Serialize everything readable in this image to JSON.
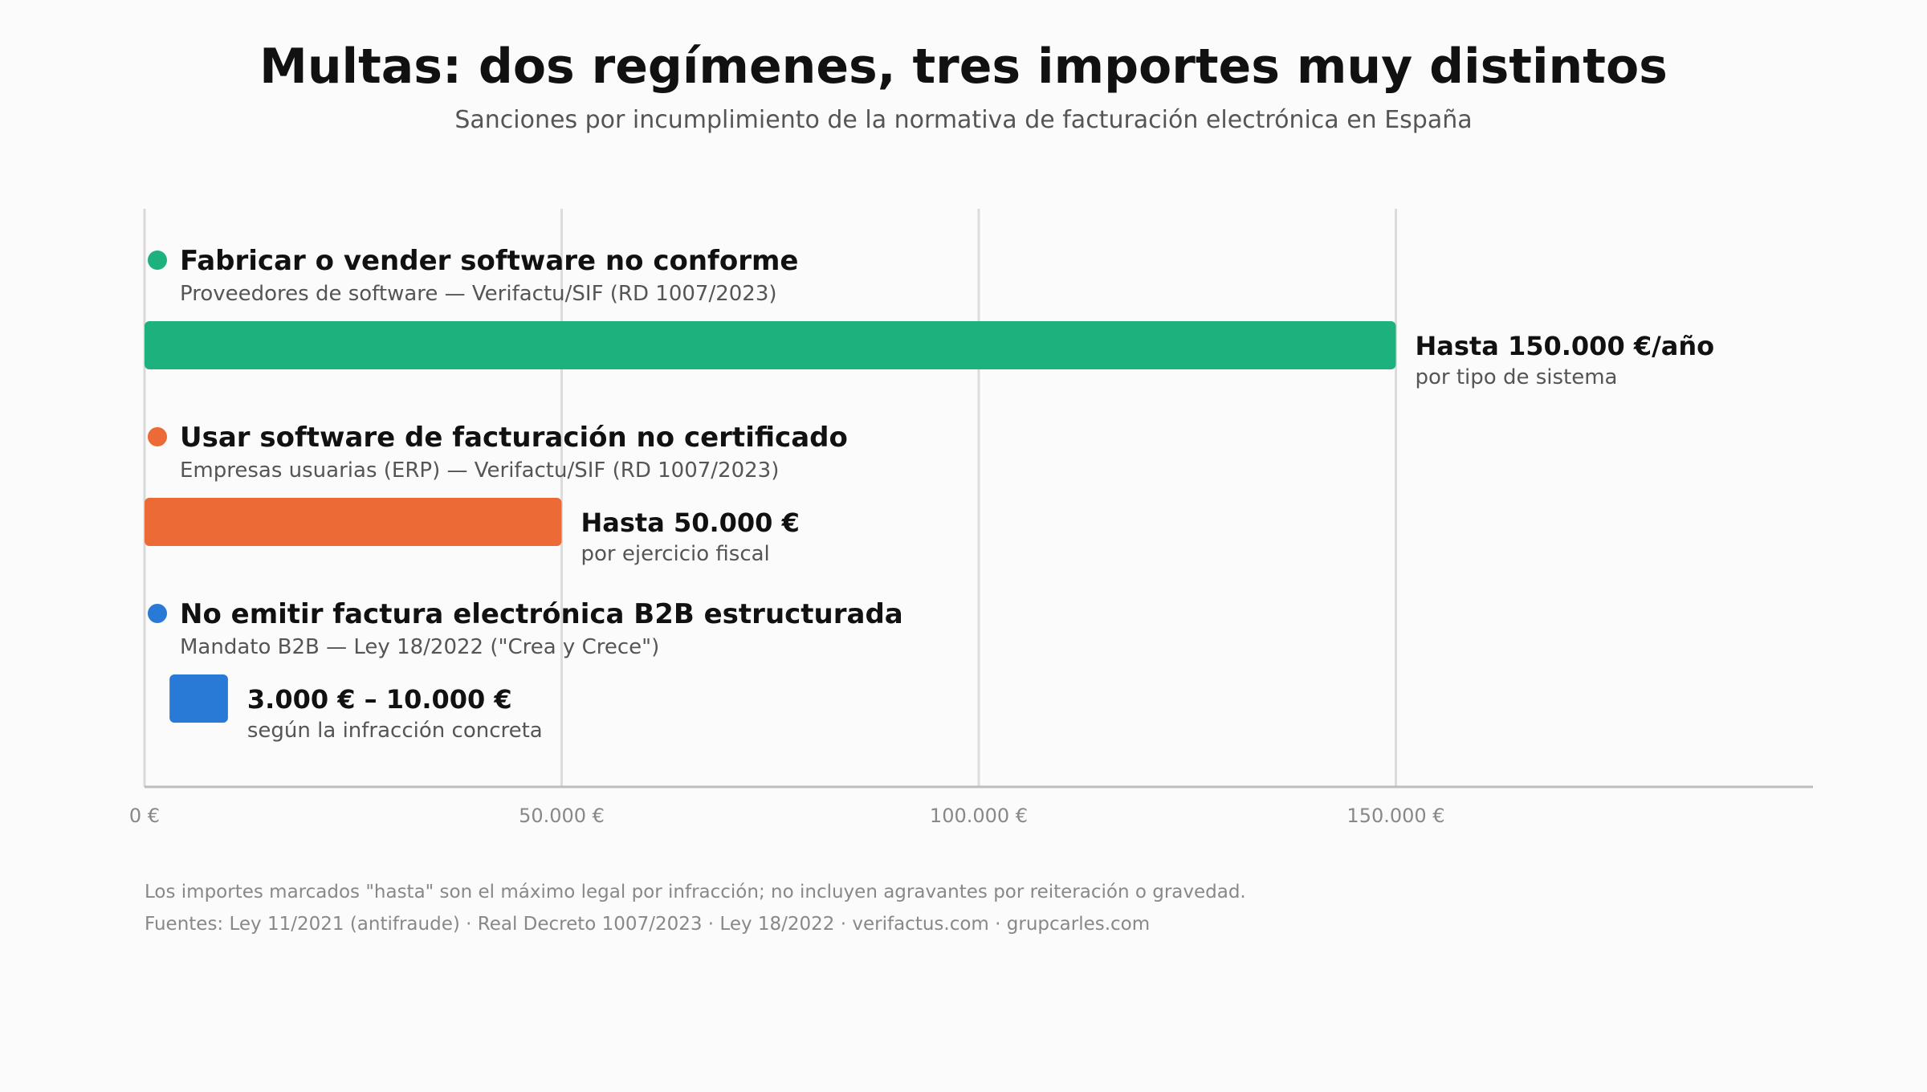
{
  "title": "Multas: dos regímenes, tres importes muy distintos",
  "subtitle": "Sanciones por incumplimiento de la normativa de facturación electrónica en España",
  "chart_data": {
    "type": "bar",
    "orientation": "horizontal",
    "xlim": [
      0,
      200000
    ],
    "xticks": [
      0,
      50000,
      100000,
      150000
    ],
    "xtick_labels": [
      "0 €",
      "50.000 €",
      "100.000 €",
      "150.000 €"
    ],
    "grid": true,
    "series": [
      {
        "name": "Fabricar o vender software no conforme",
        "subtitle": "Proveedores de software — Verifactu/SIF (RD 1007/2023)",
        "start": 0,
        "end": 150000,
        "value_label": "Hasta 150.000 €/año",
        "value_sublabel": "por tipo de sistema",
        "color": "#1db17d"
      },
      {
        "name": "Usar software de facturación no certificado",
        "subtitle": "Empresas usuarias (ERP) — Verifactu/SIF (RD 1007/2023)",
        "start": 0,
        "end": 50000,
        "value_label": "Hasta 50.000 €",
        "value_sublabel": "por ejercicio fiscal",
        "color": "#ec6a36"
      },
      {
        "name": "No emitir factura electrónica B2B estructurada",
        "subtitle": "Mandato B2B — Ley 18/2022 (\"Crea y Crece\")",
        "start": 3000,
        "end": 10000,
        "value_label": "3.000 € – 10.000 €",
        "value_sublabel": "según la infracción concreta",
        "color": "#2979d6"
      }
    ]
  },
  "footnote": "Los importes marcados \"hasta\" son el máximo legal por infracción; no incluyen agravantes por reiteración o gravedad.",
  "sources": "Fuentes: Ley 11/2021 (antifraude) · Real Decreto 1007/2023 · Ley 18/2022 · verifactus.com · grupcarles.com"
}
